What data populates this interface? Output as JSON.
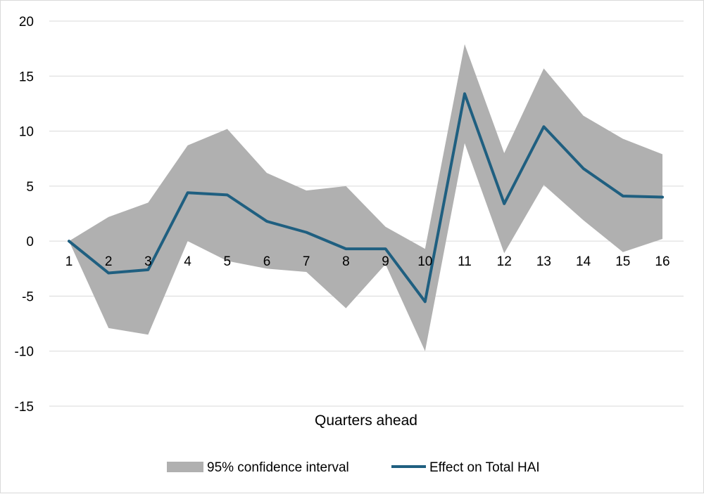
{
  "chart_data": {
    "type": "line",
    "x": [
      1,
      2,
      3,
      4,
      5,
      6,
      7,
      8,
      9,
      10,
      11,
      12,
      13,
      14,
      15,
      16
    ],
    "xlabel": "Quarters ahead",
    "ylabel": "",
    "ylim": [
      -15,
      20
    ],
    "yticks": [
      -15,
      -10,
      -5,
      0,
      5,
      10,
      15,
      20
    ],
    "grid": "horizontal",
    "legend_position": "bottom",
    "series": [
      {
        "name": "Effect on Total HAI",
        "type": "line",
        "color": "#1f5f80",
        "values": [
          0,
          -2.9,
          -2.6,
          4.4,
          4.2,
          1.8,
          0.8,
          -0.7,
          -0.7,
          -5.5,
          13.4,
          3.4,
          10.4,
          6.6,
          4.1,
          4.0
        ]
      },
      {
        "name": "95% confidence interval",
        "type": "band",
        "color": "#b0b0b0",
        "upper": [
          0,
          2.2,
          3.5,
          8.7,
          10.2,
          6.2,
          4.6,
          5.0,
          1.3,
          -0.7,
          17.9,
          8.0,
          15.7,
          11.4,
          9.3,
          7.9
        ],
        "lower": [
          0,
          -7.9,
          -8.5,
          0,
          -1.8,
          -2.5,
          -2.8,
          -6.1,
          -2.1,
          -10.0,
          8.9,
          -1.1,
          5.1,
          1.9,
          -1.0,
          0.2
        ]
      }
    ]
  }
}
